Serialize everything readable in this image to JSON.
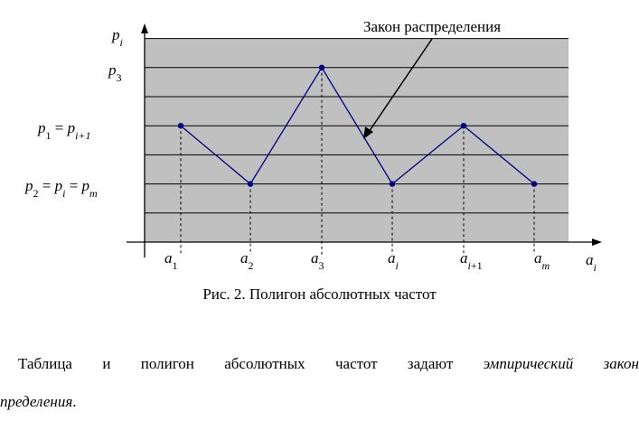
{
  "chart_data": {
    "type": "line",
    "categories": [
      "a1",
      "a2",
      "a3",
      "ai",
      "ai+1",
      "am"
    ],
    "values": [
      4,
      2,
      6,
      2,
      4,
      2
    ],
    "y_ticks": [
      {
        "value": 6,
        "label": "p3"
      },
      {
        "value": 4,
        "label": "p1 = pi+1"
      },
      {
        "value": 2,
        "label": "p2 = pi = pm"
      }
    ],
    "ylim": [
      0,
      7
    ],
    "grid_levels": [
      1,
      2,
      3,
      4,
      5,
      6,
      7
    ],
    "ylabel": "pi",
    "xlabel": "ai",
    "annotation": "Закон распределения",
    "colors": {
      "plot_bg": "#c0c0c0",
      "line": "#000080",
      "marker": "#000080",
      "grid": "#000000"
    }
  },
  "caption": "Рис. 2. Полигон абсолютных частот",
  "body": {
    "line1": [
      "Таблица",
      "и",
      "полигон",
      "абсолютных",
      "частот",
      "задают"
    ],
    "line1_italic": [
      "эмпирический",
      "закон"
    ],
    "line2_italic": "пределения",
    "line2_tail": "."
  }
}
